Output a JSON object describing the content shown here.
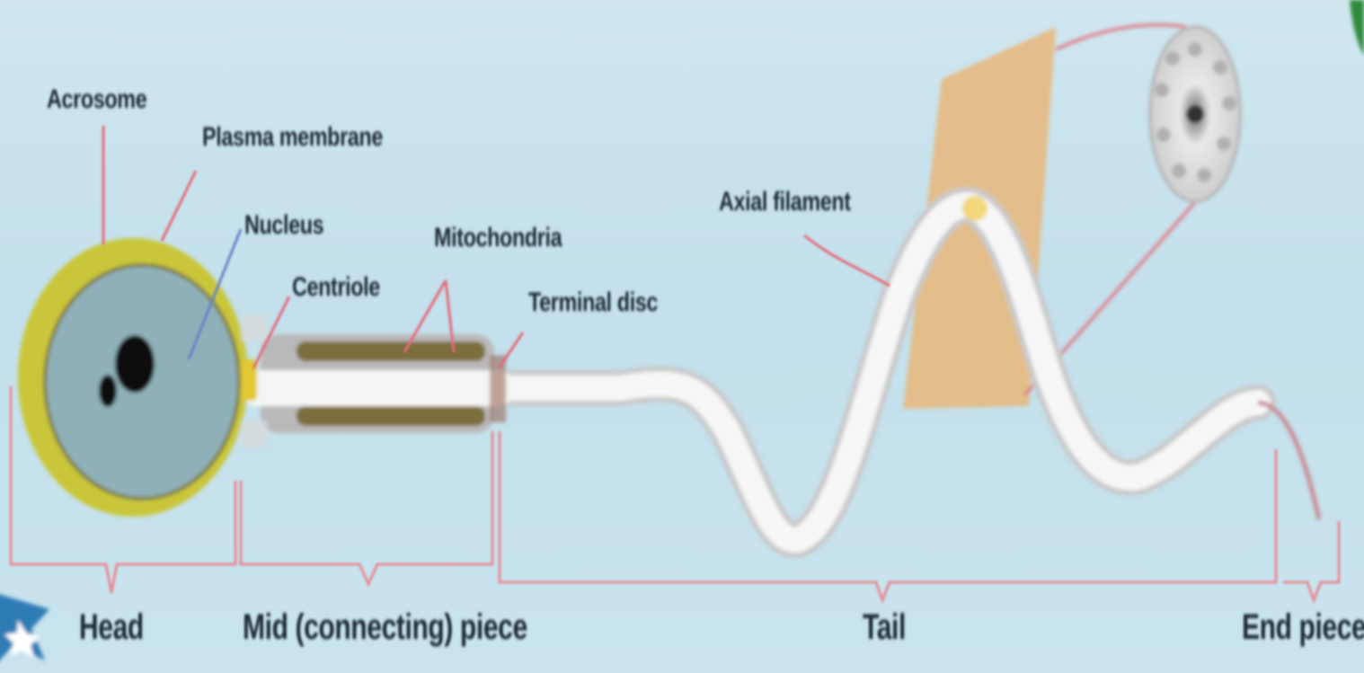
{
  "labels": {
    "acrosome": "Acrosome",
    "plasma_membrane": "Plasma membrane",
    "nucleus": "Nucleus",
    "centriole": "Centriole",
    "mitochondria": "Mitochondria",
    "terminal_disc": "Terminal disc",
    "axial_filament": "Axial filament"
  },
  "regions": {
    "head": "Head",
    "middle_piece": "Mid (connecting) piece",
    "tail": "Tail",
    "end_piece": "End piece"
  },
  "colors": {
    "background": "#c6e2ed",
    "pointer_line": "#e36d7a",
    "membrane": "#c9c63a",
    "head_fill": "#8fb0b8",
    "nucleus": "#111111",
    "tail": "#f4f4f4",
    "section_plane": "#e8b77a"
  },
  "icons": {
    "corner_star": "star-icon",
    "corner_tab": "green-tab-icon"
  }
}
